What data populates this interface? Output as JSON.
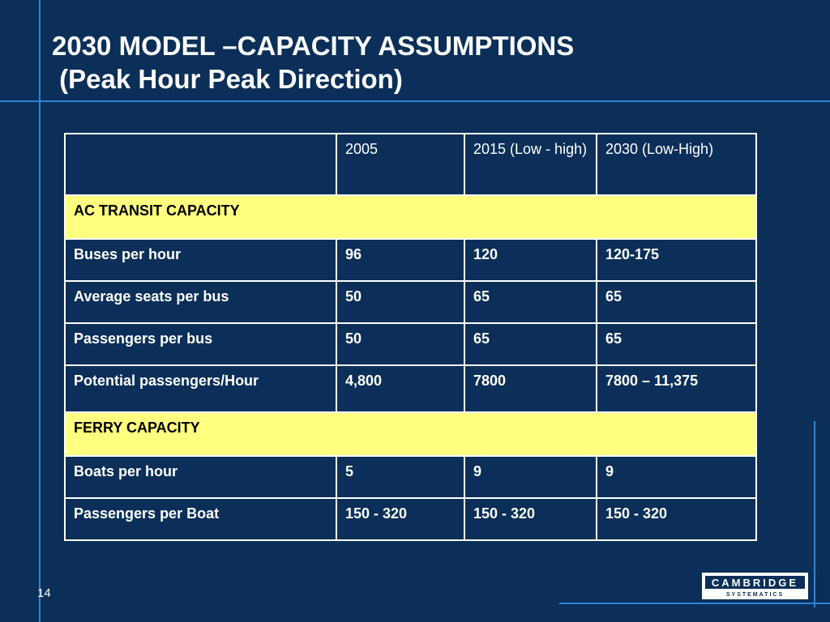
{
  "slide": {
    "title_line1": "2030 MODEL –CAPACITY ASSUMPTIONS",
    "title_line2": " (Peak Hour Peak Direction)",
    "page_number": "14"
  },
  "table": {
    "headers": [
      "",
      "2005",
      "2015 (Low - high)",
      "2030 (Low-High)"
    ],
    "sections": [
      {
        "title": "AC TRANSIT CAPACITY",
        "rows": [
          [
            "Buses per hour",
            "96",
            "120",
            "120-175"
          ],
          [
            "Average seats per bus",
            "50",
            "65",
            "65"
          ],
          [
            "Passengers per bus",
            "50",
            "65",
            "65"
          ],
          [
            "Potential passengers/Hour",
            "4,800",
            "7800",
            "7800 – 11,375"
          ]
        ]
      },
      {
        "title": "FERRY CAPACITY",
        "rows": [
          [
            "Boats per hour",
            "5",
            "9",
            "9"
          ],
          [
            "Passengers per Boat",
            "150 - 320",
            "150 - 320",
            "150 - 320"
          ]
        ]
      }
    ]
  },
  "logo": {
    "name": "CAMBRIDGE",
    "sub": "SYSTEMATICS"
  },
  "colors": {
    "background": "#0b2f58",
    "accent_line": "#2a86d8",
    "section_fill": "#ffff80"
  }
}
